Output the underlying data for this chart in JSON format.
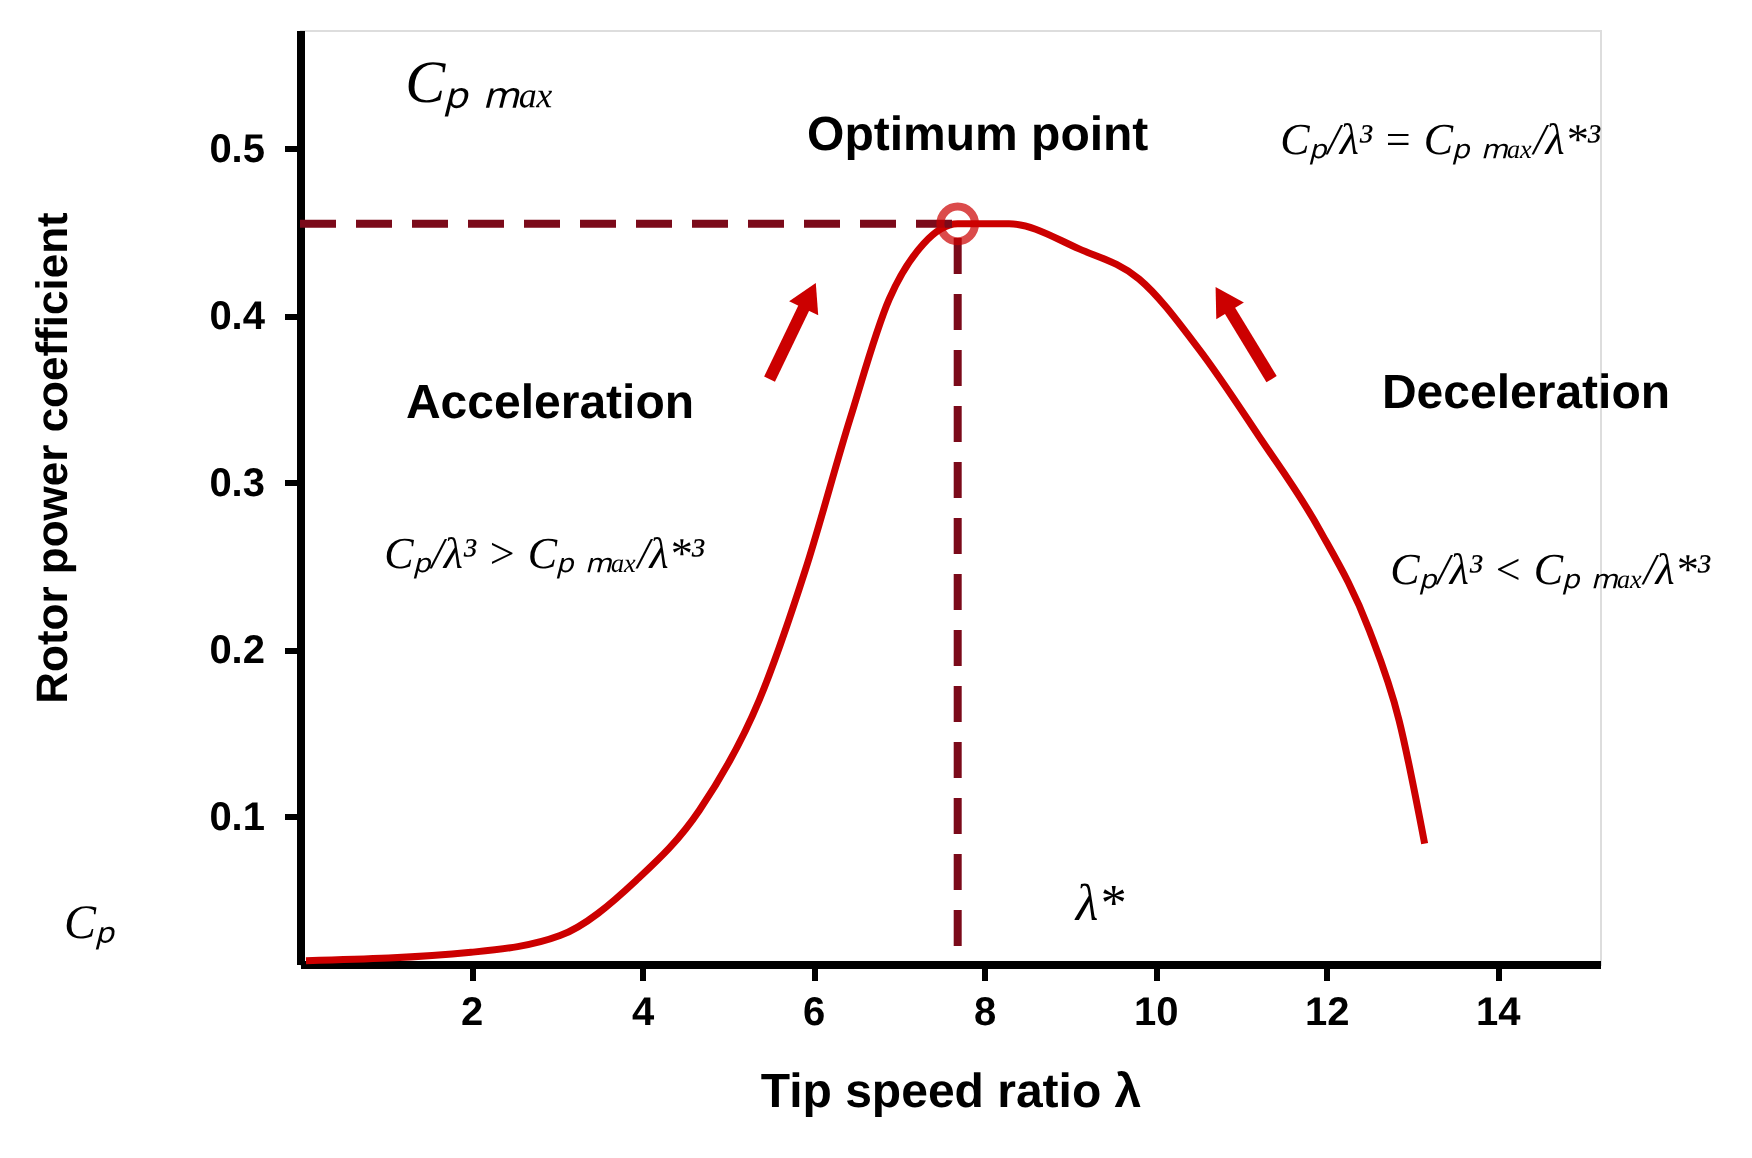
{
  "chart_data": {
    "type": "line",
    "xlabel": "Tip speed ratio λ",
    "ylabel": "Rotor power coefficient",
    "xlim": [
      0,
      15.2
    ],
    "ylim": [
      0.012,
      0.571
    ],
    "xticks": [
      2,
      4,
      6,
      8,
      10,
      12,
      14
    ],
    "yticks": [
      0.1,
      0.2,
      0.3,
      0.4,
      0.5
    ],
    "grid": false,
    "series": [
      {
        "color": "#cc0000",
        "line_style": "solid",
        "x": [
          0.07,
          2,
          3.04,
          3.93,
          4.67,
          5.37,
          5.91,
          6.43,
          6.89,
          7.29,
          7.69,
          8.29,
          9.11,
          9.81,
          10.51,
          11.21,
          11.92,
          12.5,
          12.85,
          13.15
        ],
        "values": [
          0.014,
          0.019,
          0.029,
          0.062,
          0.104,
          0.17,
          0.248,
          0.338,
          0.41,
          0.443,
          0.455,
          0.455,
          0.44,
          0.422,
          0.38,
          0.328,
          0.272,
          0.212,
          0.158,
          0.084
        ]
      },
      {
        "type": "line",
        "color": "#7b0a1a",
        "line_style": "dashed",
        "x": [
          0,
          7.69,
          7.69
        ],
        "values": [
          0.455,
          0.455,
          0.012
        ]
      },
      {
        "type": "scatter",
        "color": "#cc0000",
        "marker": "circle",
        "x": [
          7.69
        ],
        "values": [
          0.455
        ]
      }
    ],
    "annotations": [
      {
        "text": "Optimum point",
        "x": 7.69,
        "y": 0.455
      },
      "Acceleration",
      "Cₚ/λ³ > Cₚ ₘₐₓ/λ*³",
      "Deceleration",
      "Cₚ/λ³ < Cₚ ₘₐₓ/λ*³",
      "Cₚ/λ³ = Cₚ ₘₐₓ/λ*³",
      "Cₚ ₘₐₓ",
      "λ*",
      "Cₚ"
    ]
  }
}
